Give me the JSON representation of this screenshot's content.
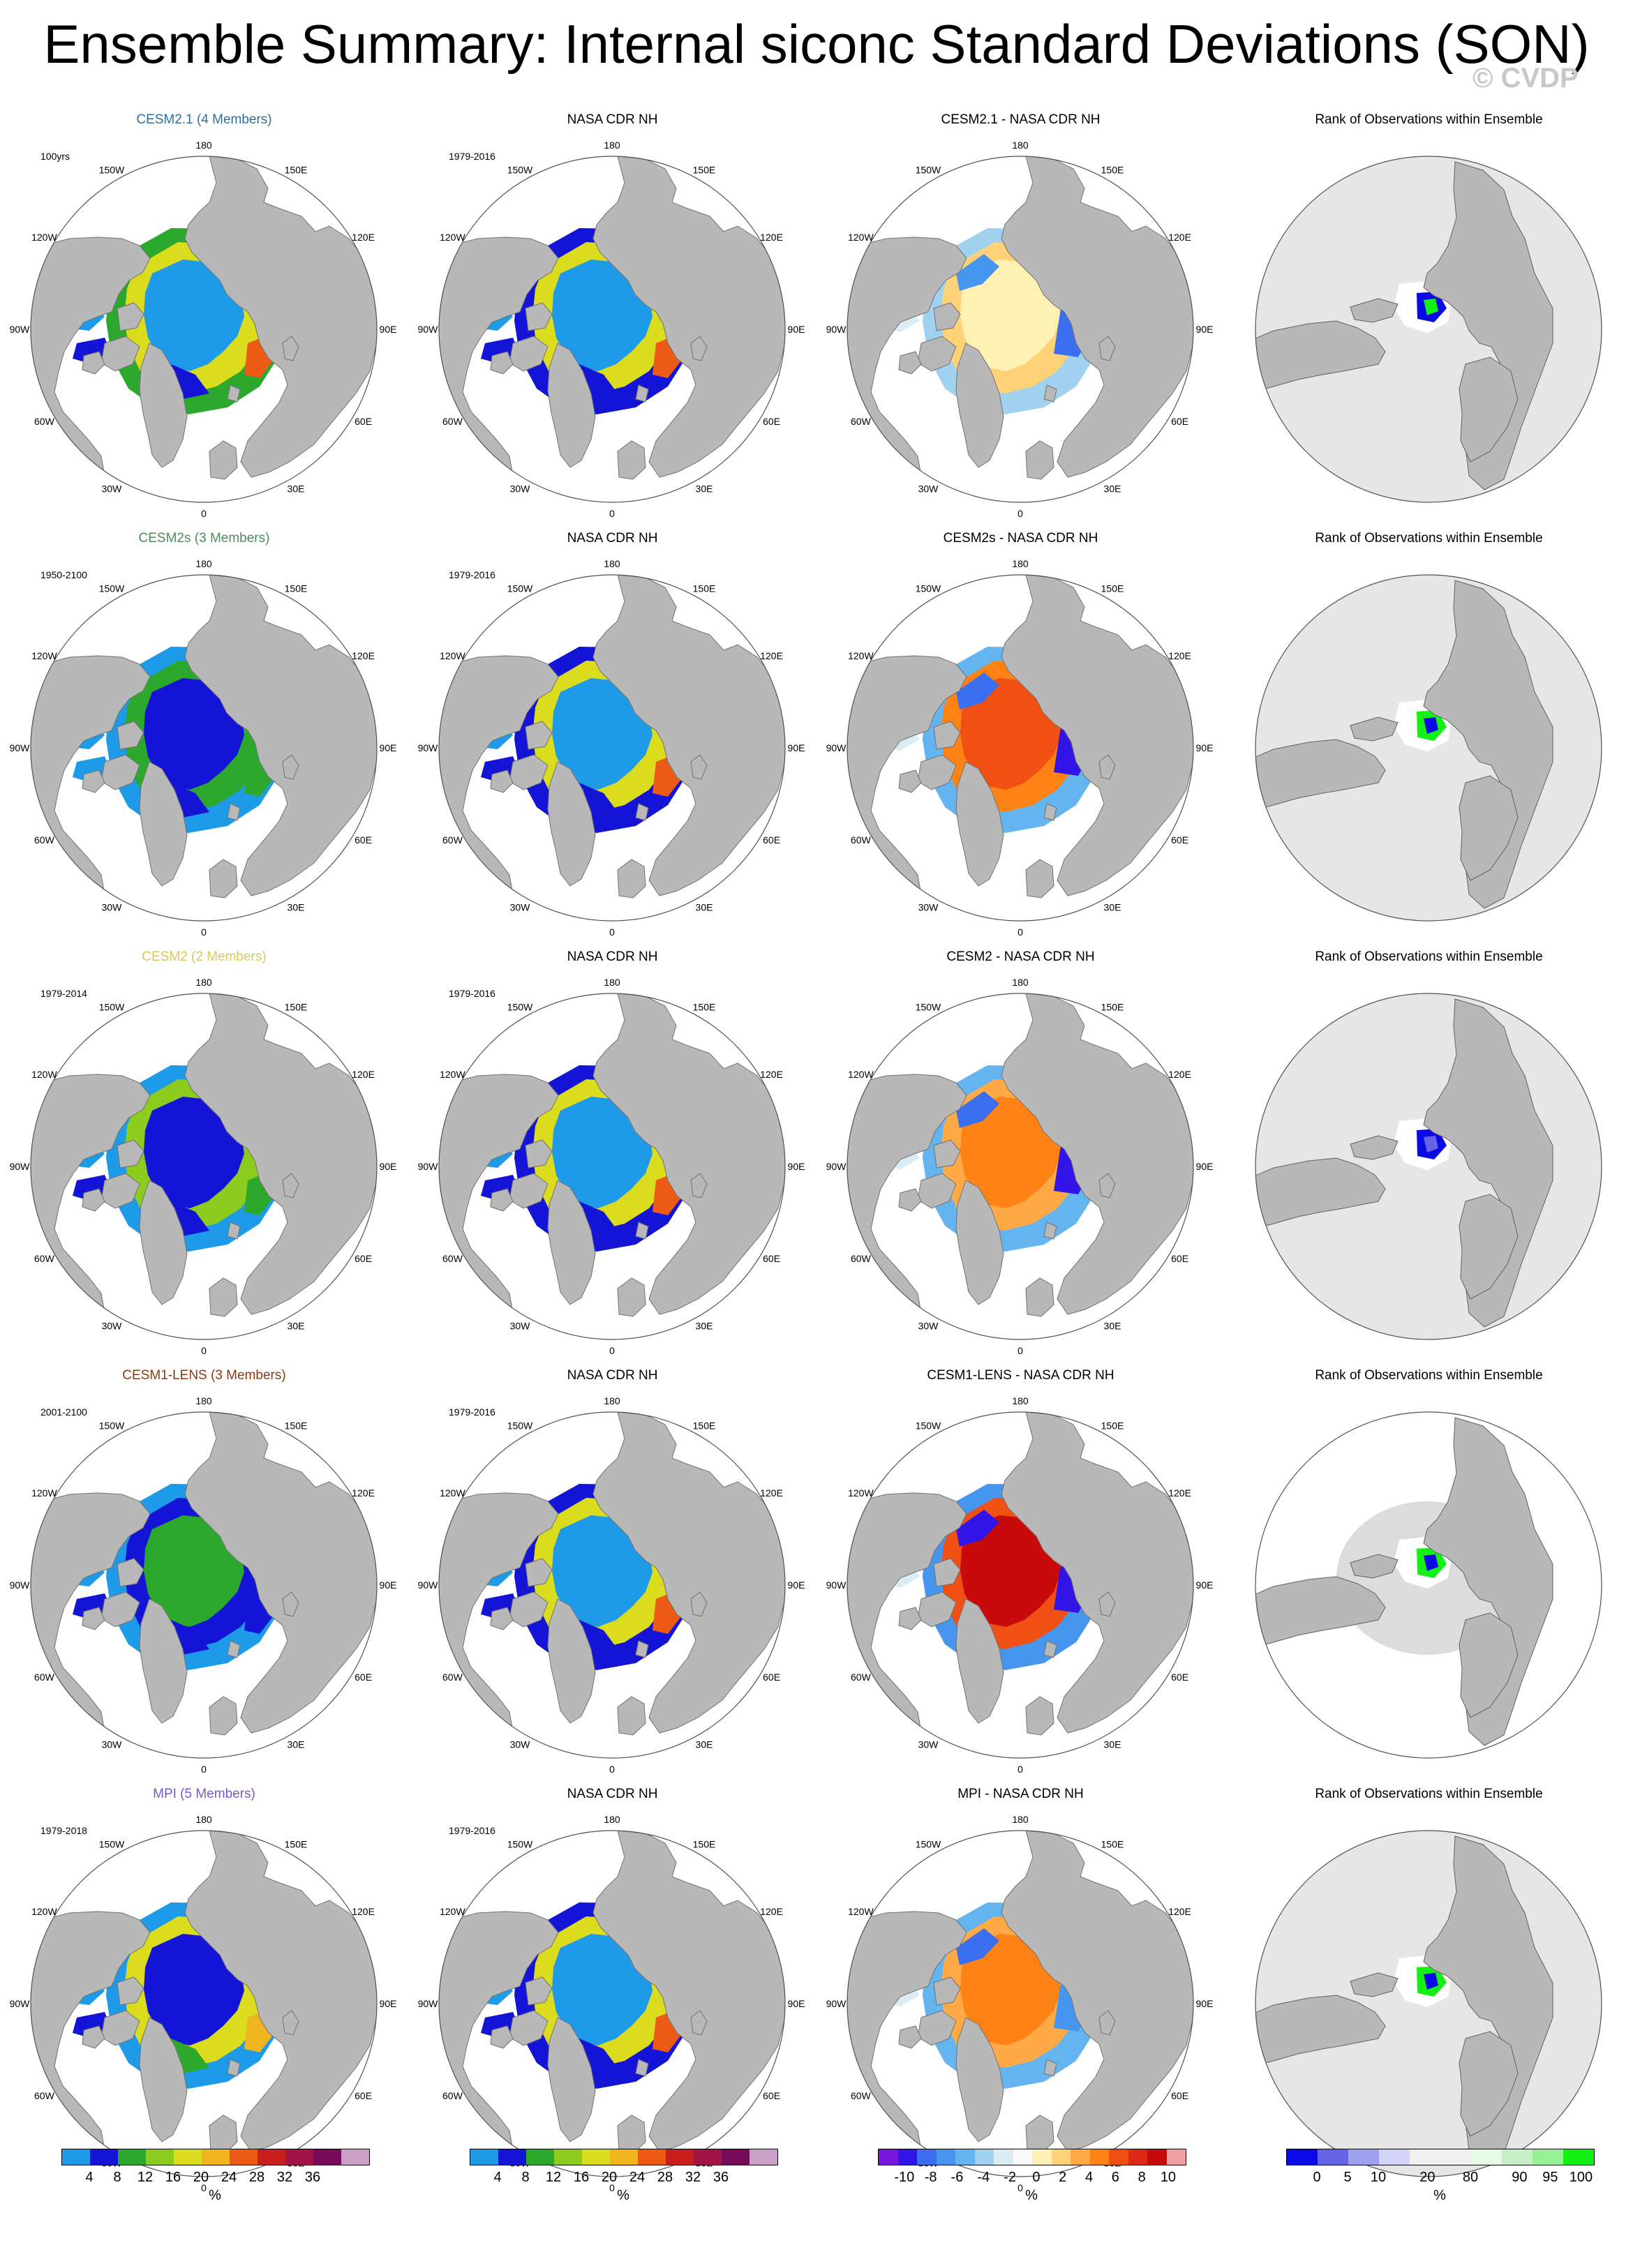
{
  "title": "Ensemble Summary: Internal siconc Standard Deviations (SON)",
  "copyright": "© CVDP",
  "colors": {
    "land": "#b8b8b8",
    "ocean": "#ffffff",
    "rank_background": "#e6e6e6"
  },
  "rows": [
    {
      "model": "CESM2.1 (4 Members)",
      "model_color": "#2e6f9e",
      "period": "100yrs",
      "obs_title": "NASA CDR NH",
      "obs_period": "1979-2016",
      "diff_title": "CESM2.1 - NASA CDR NH",
      "rank_title": "Rank of Observations within Ensemble"
    },
    {
      "model": "CESM2s (3 Members)",
      "model_color": "#4f8a5b",
      "period": "1950-2100",
      "obs_title": "NASA CDR NH",
      "obs_period": "1979-2016",
      "diff_title": "CESM2s - NASA CDR NH",
      "rank_title": "Rank of Observations within Ensemble"
    },
    {
      "model": "CESM2 (2 Members)",
      "model_color": "#d6c85a",
      "period": "1979-2014",
      "obs_title": "NASA CDR NH",
      "obs_period": "1979-2016",
      "diff_title": "CESM2 - NASA CDR NH",
      "rank_title": "Rank of Observations within Ensemble"
    },
    {
      "model": "CESM1-LENS (3 Members)",
      "model_color": "#8a3a12",
      "period": "2001-2100",
      "obs_title": "NASA CDR NH",
      "obs_period": "1979-2016",
      "diff_title": "CESM1-LENS - NASA CDR NH",
      "rank_title": "Rank of Observations within Ensemble"
    },
    {
      "model": "MPI (5 Members)",
      "model_color": "#7a58c8",
      "period": "1979-2018",
      "obs_title": "NASA CDR NH",
      "obs_period": "1979-2016",
      "diff_title": "MPI - NASA CDR NH",
      "rank_title": "Rank of Observations within Ensemble"
    }
  ],
  "grid_labels": [
    "180",
    "150E",
    "120E",
    "90E",
    "60E",
    "30E",
    "0",
    "30W",
    "60W",
    "90W",
    "120W",
    "150W"
  ],
  "legends": {
    "sd": {
      "colors": [
        "#1e9be8",
        "#1414d6",
        "#2ca82c",
        "#8ccc1e",
        "#dcdc1e",
        "#f0b41e",
        "#ec5a14",
        "#c81e1e",
        "#a01446",
        "#780a5a",
        "#c8a0c8"
      ],
      "ticks": [
        "4",
        "8",
        "12",
        "16",
        "20",
        "24",
        "28",
        "32",
        "36"
      ],
      "unit": "%"
    },
    "diff": {
      "colors": [
        "#7814dc",
        "#3214e6",
        "#3c6ef0",
        "#4696f0",
        "#64b4f0",
        "#a0d2f0",
        "#dcecf4",
        "#fafafa",
        "#fff0b4",
        "#ffd278",
        "#ffaa46",
        "#ff8214",
        "#f05014",
        "#dc2814",
        "#c80a0a",
        "#f0a0a0"
      ],
      "ticks": [
        "-10",
        "-8",
        "-6",
        "-4",
        "-2",
        "0",
        "2",
        "4",
        "6",
        "8",
        "10"
      ],
      "unit": "%"
    },
    "rank": {
      "colors": [
        "#0a0ae6",
        "#6464e6",
        "#a0a0f0",
        "#d2d2fa",
        "#f0f0f0",
        "#f0f0f0",
        "#e6fae6",
        "#c8f0c8",
        "#96f096",
        "#14f014"
      ],
      "ticks": [
        "0",
        "5",
        "10",
        "20",
        "80",
        "90",
        "95",
        "100"
      ],
      "unit": "%"
    }
  }
}
